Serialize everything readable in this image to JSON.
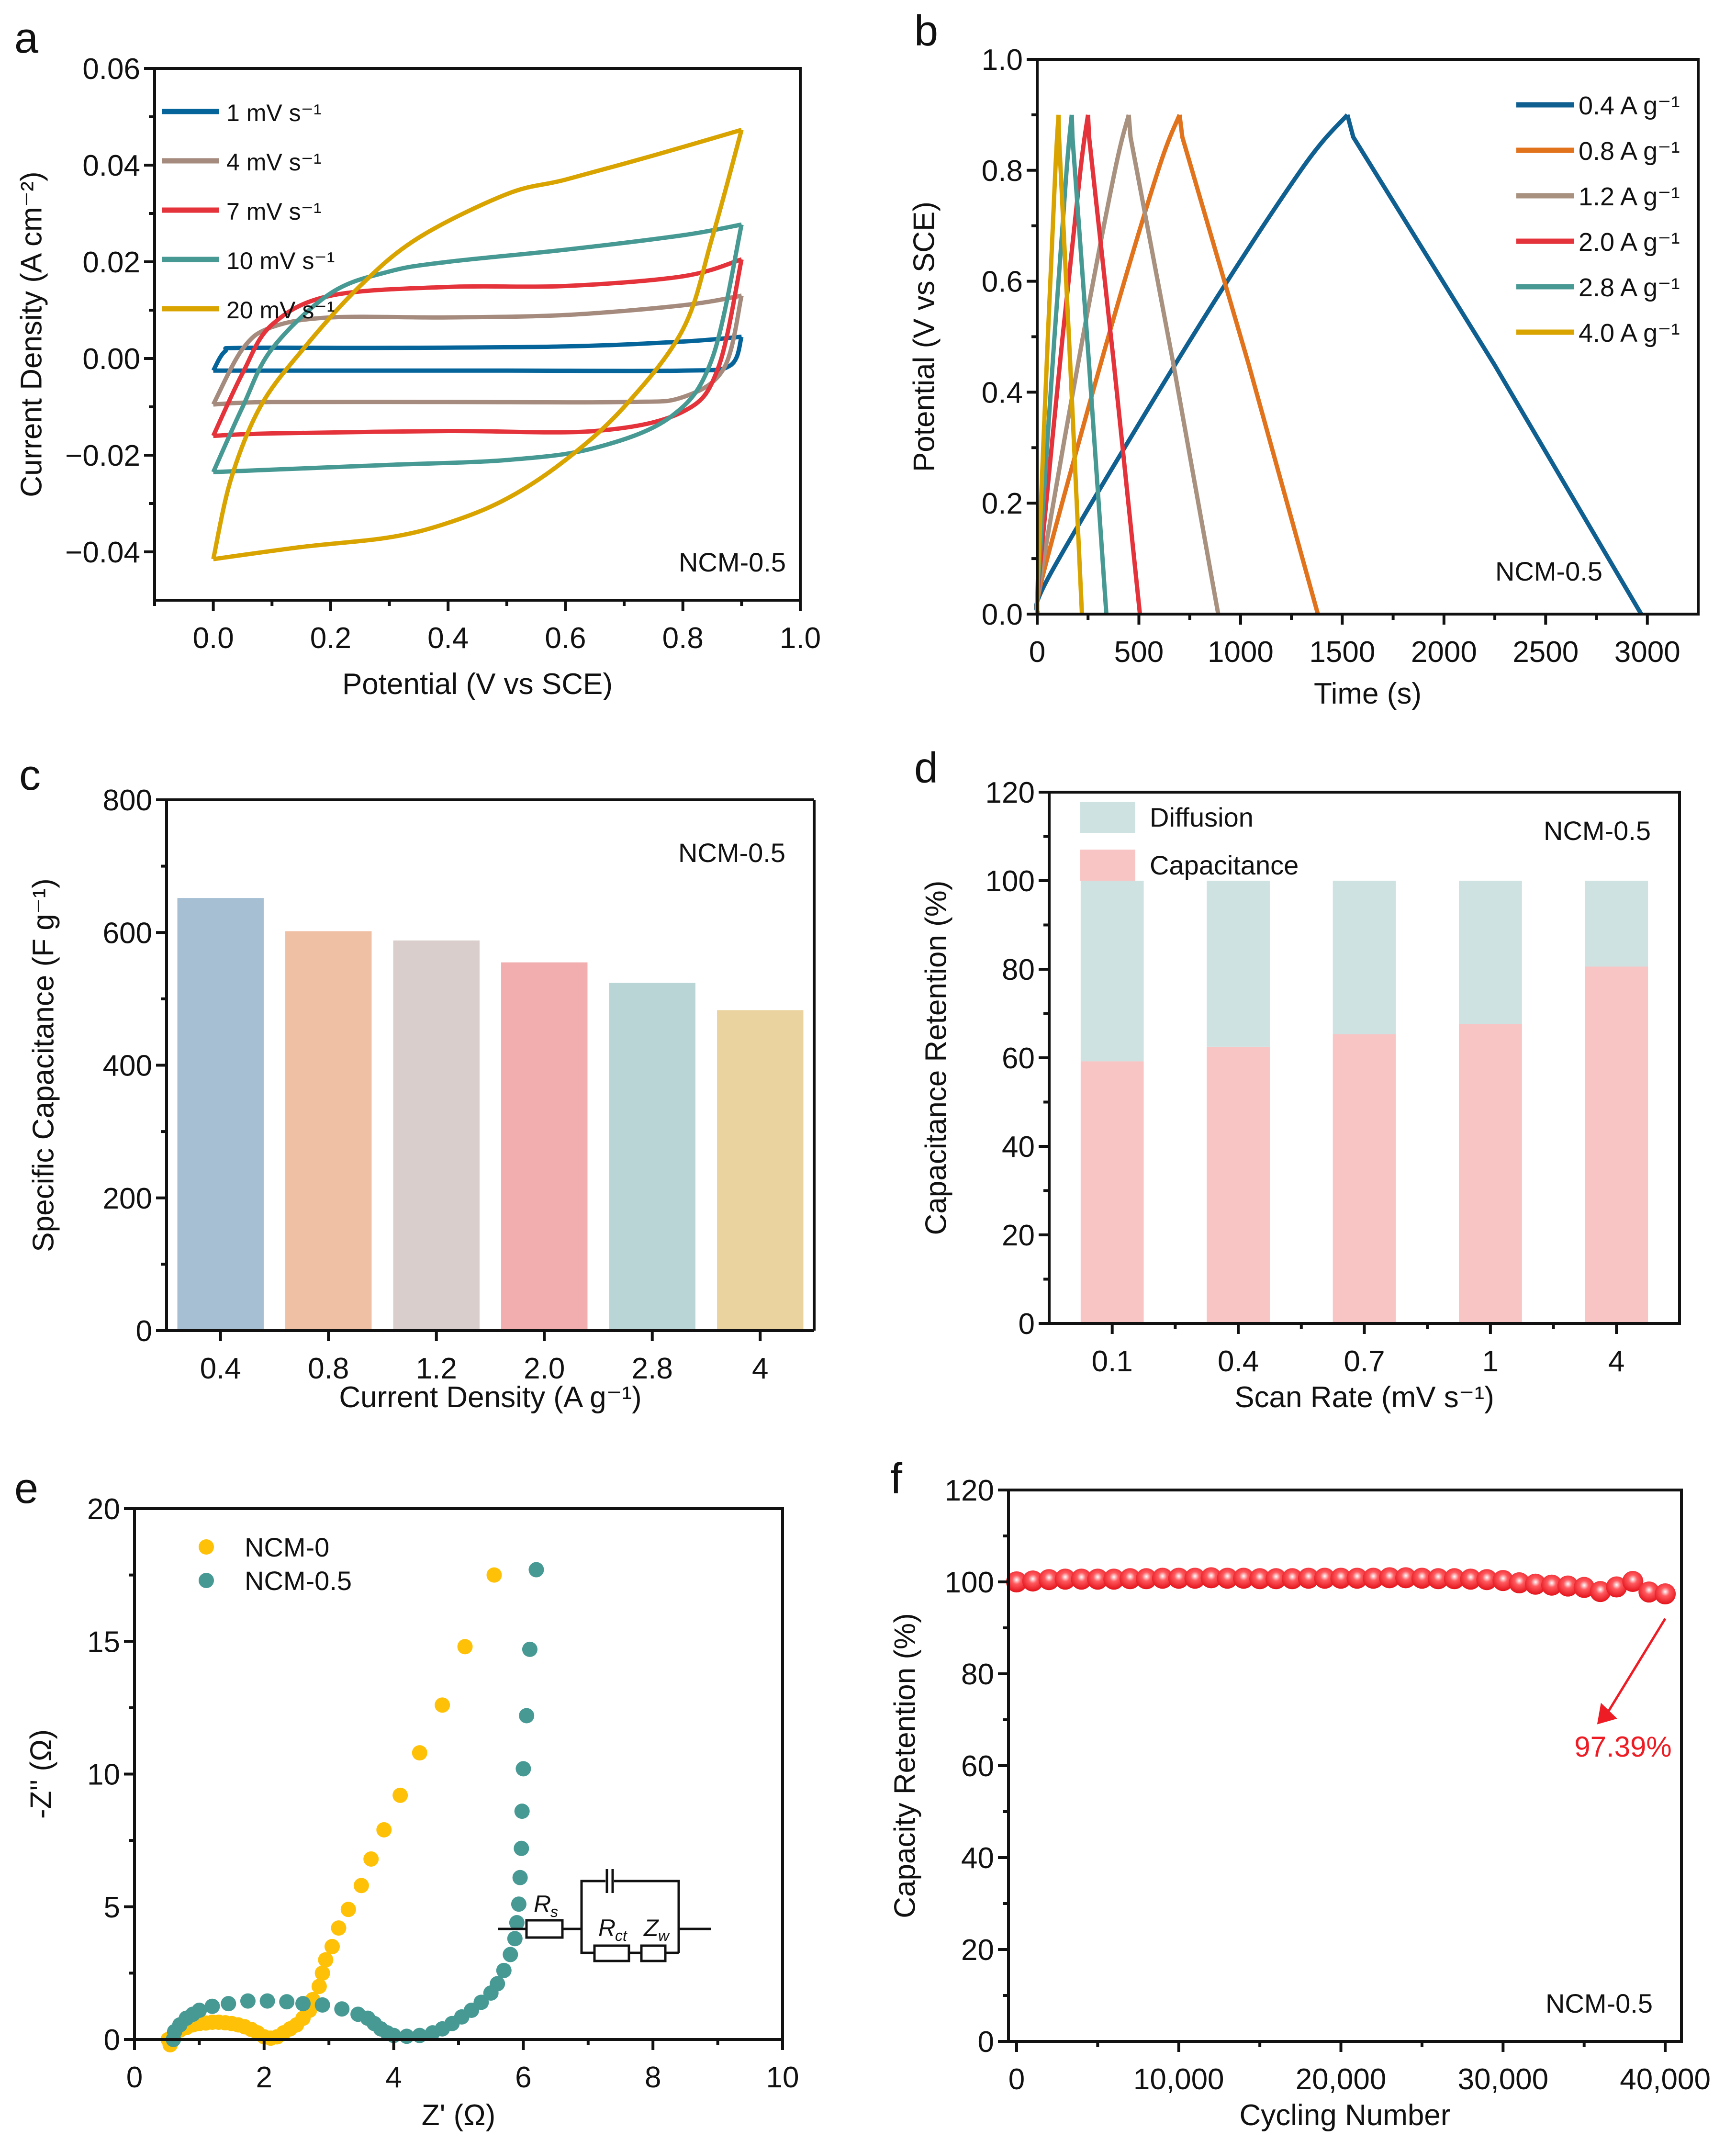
{
  "chart_data": [
    {
      "panel": "a",
      "type": "line",
      "xlabel": "Potential (V vs SCE)",
      "ylabel": "Current Density (A  cm⁻²)",
      "xlim": [
        -0.1,
        1.0
      ],
      "ylim": [
        -0.05,
        0.06
      ],
      "xticks": [
        0.0,
        0.2,
        0.4,
        0.6,
        0.8,
        1.0
      ],
      "xtick_labels": [
        "0.0",
        "0.2",
        "0.4",
        "0.6",
        "0.8",
        "1.0"
      ],
      "yticks": [
        -0.04,
        -0.02,
        0.0,
        0.02,
        0.04,
        0.06
      ],
      "ytick_labels": [
        "−0.04",
        "−0.02",
        "0.00",
        "0.02",
        "0.04",
        "0.06"
      ],
      "annotation": "NCM-0.5",
      "legend_position": "top-left",
      "series": [
        {
          "name": "1 mV  s⁻¹",
          "color": "#05649a",
          "upper": [
            [
              0,
              -0.0025
            ],
            [
              0.02,
              0.0015
            ],
            [
              0.05,
              0.0022
            ],
            [
              0.3,
              0.0022
            ],
            [
              0.6,
              0.0025
            ],
            [
              0.8,
              0.0035
            ],
            [
              0.9,
              0.0045
            ]
          ],
          "lower": [
            [
              0.9,
              0.0045
            ],
            [
              0.88,
              -0.0015
            ],
            [
              0.8,
              -0.0025
            ],
            [
              0.5,
              -0.0025
            ],
            [
              0.2,
              -0.0025
            ],
            [
              0,
              -0.0025
            ]
          ]
        },
        {
          "name": "4 mV  s⁻¹",
          "color": "#a58b7d",
          "upper": [
            [
              0,
              -0.0095
            ],
            [
              0.05,
              0.002
            ],
            [
              0.1,
              0.0065
            ],
            [
              0.2,
              0.0085
            ],
            [
              0.4,
              0.0085
            ],
            [
              0.6,
              0.009
            ],
            [
              0.8,
              0.011
            ],
            [
              0.9,
              0.013
            ]
          ],
          "lower": [
            [
              0.9,
              0.013
            ],
            [
              0.87,
              -0.002
            ],
            [
              0.8,
              -0.008
            ],
            [
              0.7,
              -0.009
            ],
            [
              0.4,
              -0.009
            ],
            [
              0.1,
              -0.009
            ],
            [
              0,
              -0.0095
            ]
          ]
        },
        {
          "name": "7 mV  s⁻¹",
          "color": "#e4333a",
          "upper": [
            [
              0,
              -0.016
            ],
            [
              0.05,
              -0.003
            ],
            [
              0.1,
              0.007
            ],
            [
              0.2,
              0.013
            ],
            [
              0.4,
              0.0148
            ],
            [
              0.6,
              0.015
            ],
            [
              0.8,
              0.017
            ],
            [
              0.9,
              0.0205
            ]
          ],
          "lower": [
            [
              0.9,
              0.0205
            ],
            [
              0.86,
              -0.002
            ],
            [
              0.8,
              -0.011
            ],
            [
              0.65,
              -0.015
            ],
            [
              0.4,
              -0.015
            ],
            [
              0.1,
              -0.0155
            ],
            [
              0,
              -0.016
            ]
          ]
        },
        {
          "name": "10 mV  s⁻¹",
          "color": "#479994",
          "upper": [
            [
              0,
              -0.0235
            ],
            [
              0.05,
              -0.01
            ],
            [
              0.1,
              0.002
            ],
            [
              0.2,
              0.0135
            ],
            [
              0.3,
              0.018
            ],
            [
              0.4,
              0.02
            ],
            [
              0.6,
              0.0225
            ],
            [
              0.8,
              0.0255
            ],
            [
              0.9,
              0.0277
            ]
          ],
          "lower": [
            [
              0.9,
              0.0277
            ],
            [
              0.85,
              0.0
            ],
            [
              0.78,
              -0.012
            ],
            [
              0.65,
              -0.0185
            ],
            [
              0.5,
              -0.021
            ],
            [
              0.3,
              -0.022
            ],
            [
              0.1,
              -0.023
            ],
            [
              0,
              -0.0235
            ]
          ]
        },
        {
          "name": "20 mV  s⁻¹",
          "color": "#d9a400",
          "upper": [
            [
              0,
              -0.0415
            ],
            [
              0.03,
              -0.025
            ],
            [
              0.08,
              -0.01
            ],
            [
              0.15,
              0.0015
            ],
            [
              0.25,
              0.015
            ],
            [
              0.35,
              0.025
            ],
            [
              0.5,
              0.034
            ],
            [
              0.6,
              0.037
            ],
            [
              0.75,
              0.042
            ],
            [
              0.9,
              0.0473
            ]
          ],
          "lower": [
            [
              0.9,
              0.0473
            ],
            [
              0.85,
              0.025
            ],
            [
              0.8,
              0.006
            ],
            [
              0.7,
              -0.01
            ],
            [
              0.6,
              -0.021
            ],
            [
              0.5,
              -0.029
            ],
            [
              0.4,
              -0.034
            ],
            [
              0.3,
              -0.037
            ],
            [
              0.15,
              -0.039
            ],
            [
              0,
              -0.0415
            ]
          ]
        }
      ]
    },
    {
      "panel": "b",
      "type": "line",
      "xlabel": "Time (s)",
      "ylabel": "Potential (V vs SCE)",
      "xlim": [
        0,
        3250
      ],
      "ylim": [
        0,
        1.0
      ],
      "xticks": [
        0,
        500,
        1000,
        1500,
        2000,
        2500,
        3000
      ],
      "xtick_labels": [
        "0",
        "500",
        "1000",
        "1500",
        "2000",
        "2500",
        "3000"
      ],
      "yticks": [
        0.0,
        0.2,
        0.4,
        0.6,
        0.8,
        1.0
      ],
      "ytick_labels": [
        "0.0",
        "0.2",
        "0.4",
        "0.6",
        "0.8",
        "1.0"
      ],
      "annotation": "NCM-0.5",
      "legend_position": "top-right",
      "series": [
        {
          "name": "0.4 A g⁻¹",
          "color": "#0f5f91",
          "charge_end": 1525,
          "discharge_end": 2970
        },
        {
          "name": "0.8 A g⁻¹",
          "color": "#e2731d",
          "charge_end": 700,
          "discharge_end": 1380
        },
        {
          "name": "1.2 A g⁻¹",
          "color": "#a8917f",
          "charge_end": 450,
          "discharge_end": 890
        },
        {
          "name": "2.0 A g⁻¹",
          "color": "#e4333a",
          "charge_end": 250,
          "discharge_end": 505
        },
        {
          "name": "2.8 A g⁻¹",
          "color": "#479994",
          "charge_end": 170,
          "discharge_end": 340
        },
        {
          "name": "4.0 A g⁻¹",
          "color": "#d9a400",
          "charge_end": 105,
          "discharge_end": 220
        }
      ],
      "peak_potential": 0.9
    },
    {
      "panel": "c",
      "type": "bar",
      "xlabel": "Current Density (A  g⁻¹)",
      "ylabel": "Specific Capacitance (F  g⁻¹)",
      "categories": [
        "0.4",
        "0.8",
        "1.2",
        "2.0",
        "2.8",
        "4"
      ],
      "values": [
        652,
        602,
        588,
        555,
        524,
        483
      ],
      "colors": [
        "#a6bfd3",
        "#f0c0a4",
        "#d9cecb",
        "#f2aeae",
        "#b9d5d6",
        "#ead39e"
      ],
      "ylim": [
        0,
        800
      ],
      "yticks": [
        0,
        200,
        400,
        600,
        800
      ],
      "annotation": "NCM-0.5"
    },
    {
      "panel": "d",
      "type": "bar",
      "stacked": true,
      "xlabel": "Scan Rate (mV s⁻¹)",
      "ylabel": "Capacitance Retention (%)",
      "categories": [
        "0.1",
        "0.4",
        "0.7",
        "1",
        "4"
      ],
      "series": [
        {
          "name": "Capacitance",
          "color": "#f9c4c4",
          "values": [
            59.2,
            62.5,
            65.3,
            67.6,
            80.6
          ]
        },
        {
          "name": "Diffusion",
          "color": "#cde2e1",
          "values": [
            40.8,
            37.5,
            34.7,
            32.4,
            19.4
          ]
        }
      ],
      "legend": [
        "Diffusion",
        "Capacitance"
      ],
      "legend_position": "top-left",
      "ylim": [
        0,
        120
      ],
      "yticks": [
        0,
        20,
        40,
        60,
        80,
        100,
        120
      ],
      "annotation": "NCM-0.5"
    },
    {
      "panel": "e",
      "type": "scatter",
      "xlabel": "Z' (Ω)",
      "ylabel": "-Z'' (Ω)",
      "xlim": [
        0,
        10
      ],
      "ylim": [
        0,
        20
      ],
      "xticks": [
        0,
        2,
        4,
        6,
        8,
        10
      ],
      "yticks": [
        0,
        5,
        10,
        15,
        20
      ],
      "legend_position": "top-left",
      "series": [
        {
          "name": "NCM-0",
          "color": "#fec107",
          "points": [
            [
              0.52,
              0.0
            ],
            [
              0.55,
              -0.2
            ],
            [
              0.6,
              0.15
            ],
            [
              0.7,
              0.35
            ],
            [
              0.8,
              0.45
            ],
            [
              0.9,
              0.55
            ],
            [
              1.0,
              0.6
            ],
            [
              1.1,
              0.62
            ],
            [
              1.2,
              0.65
            ],
            [
              1.3,
              0.65
            ],
            [
              1.4,
              0.63
            ],
            [
              1.5,
              0.6
            ],
            [
              1.6,
              0.55
            ],
            [
              1.7,
              0.48
            ],
            [
              1.8,
              0.38
            ],
            [
              1.9,
              0.25
            ],
            [
              2.0,
              0.1
            ],
            [
              2.1,
              0.05
            ],
            [
              2.2,
              0.1
            ],
            [
              2.3,
              0.25
            ],
            [
              2.4,
              0.4
            ],
            [
              2.5,
              0.55
            ],
            [
              2.6,
              0.8
            ],
            [
              2.7,
              1.1
            ],
            [
              2.75,
              1.5
            ],
            [
              2.85,
              2.0
            ],
            [
              2.9,
              2.5
            ],
            [
              2.95,
              3.0
            ],
            [
              3.05,
              3.5
            ],
            [
              3.15,
              4.2
            ],
            [
              3.3,
              4.9
            ],
            [
              3.5,
              5.8
            ],
            [
              3.65,
              6.8
            ],
            [
              3.85,
              7.9
            ],
            [
              4.1,
              9.2
            ],
            [
              4.4,
              10.8
            ],
            [
              4.75,
              12.6
            ],
            [
              5.1,
              14.8
            ],
            [
              5.55,
              17.5
            ]
          ]
        },
        {
          "name": "NCM-0.5",
          "color": "#479994",
          "points": [
            [
              0.6,
              0.0
            ],
            [
              0.62,
              0.3
            ],
            [
              0.7,
              0.55
            ],
            [
              0.8,
              0.8
            ],
            [
              0.9,
              0.95
            ],
            [
              1.0,
              1.1
            ],
            [
              1.2,
              1.25
            ],
            [
              1.45,
              1.35
            ],
            [
              1.75,
              1.45
            ],
            [
              2.05,
              1.45
            ],
            [
              2.35,
              1.42
            ],
            [
              2.6,
              1.35
            ],
            [
              2.9,
              1.3
            ],
            [
              3.2,
              1.15
            ],
            [
              3.45,
              0.95
            ],
            [
              3.6,
              0.8
            ],
            [
              3.7,
              0.6
            ],
            [
              3.8,
              0.4
            ],
            [
              3.9,
              0.25
            ],
            [
              4.0,
              0.15
            ],
            [
              4.2,
              0.12
            ],
            [
              4.4,
              0.15
            ],
            [
              4.6,
              0.25
            ],
            [
              4.75,
              0.4
            ],
            [
              4.9,
              0.6
            ],
            [
              5.05,
              0.85
            ],
            [
              5.2,
              1.1
            ],
            [
              5.35,
              1.4
            ],
            [
              5.5,
              1.75
            ],
            [
              5.6,
              2.1
            ],
            [
              5.7,
              2.6
            ],
            [
              5.8,
              3.2
            ],
            [
              5.87,
              3.8
            ],
            [
              5.9,
              4.4
            ],
            [
              5.93,
              5.1
            ],
            [
              5.95,
              6.1
            ],
            [
              5.97,
              7.2
            ],
            [
              5.98,
              8.6
            ],
            [
              6.0,
              10.2
            ],
            [
              6.05,
              12.2
            ],
            [
              6.1,
              14.7
            ],
            [
              6.2,
              17.7
            ]
          ]
        }
      ],
      "inset_circuit": {
        "labels": [
          "R",
          "s",
          "R",
          "ct",
          "Z",
          "w"
        ]
      }
    },
    {
      "panel": "f",
      "type": "scatter",
      "xlabel": "Cycling Number",
      "ylabel": "Capacity Retention (%)",
      "xlim": [
        -500,
        41000
      ],
      "ylim": [
        0,
        120
      ],
      "xticks": [
        0,
        10000,
        20000,
        30000,
        40000
      ],
      "xtick_labels": [
        "0",
        "10,000",
        "20,000",
        "30,000",
        "40,000"
      ],
      "yticks": [
        0,
        20,
        40,
        60,
        80,
        100,
        120
      ],
      "annotation": "NCM-0.5",
      "callout": "97.39%",
      "series": [
        {
          "name": "NCM-0.5",
          "color": "#ee1c24",
          "x_step": 1000,
          "values": [
            100,
            100.2,
            100.5,
            100.6,
            100.6,
            100.6,
            100.6,
            100.7,
            100.7,
            100.8,
            100.8,
            100.8,
            100.9,
            100.8,
            100.8,
            100.7,
            100.7,
            100.7,
            100.8,
            100.8,
            100.8,
            100.8,
            100.8,
            100.9,
            100.9,
            100.8,
            100.7,
            100.7,
            100.6,
            100.5,
            100.3,
            99.8,
            99.5,
            99.3,
            99.1,
            98.8,
            97.9,
            98.9,
            100.1,
            97.8,
            97.39
          ]
        }
      ]
    }
  ],
  "panel_labels": [
    "a",
    "b",
    "c",
    "d",
    "e",
    "f"
  ]
}
